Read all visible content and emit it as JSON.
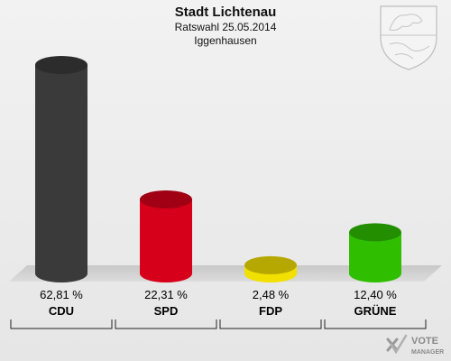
{
  "header": {
    "title": "Stadt Lichtenau",
    "subtitle": "Ratswahl 25.05.2014",
    "district": "Iggenhausen"
  },
  "chart_data": {
    "type": "bar",
    "categories": [
      "CDU",
      "SPD",
      "FDP",
      "GRÜNE"
    ],
    "values": [
      62.81,
      22.31,
      2.48,
      12.4
    ],
    "value_labels": [
      "62,81 %",
      "22,31 %",
      "2,48 %",
      "12,40 %"
    ],
    "colors": [
      "#3a3a3a",
      "#d7001a",
      "#f2e000",
      "#2fbf00"
    ],
    "ylim": [
      0,
      62.81
    ],
    "grid": false,
    "legend": "none"
  },
  "brand": {
    "line1": "VOTE",
    "line2": "MANAGER"
  },
  "icons": {
    "crest": "coat-of-arms-icon",
    "logo": "vote-manager-logo-icon"
  }
}
